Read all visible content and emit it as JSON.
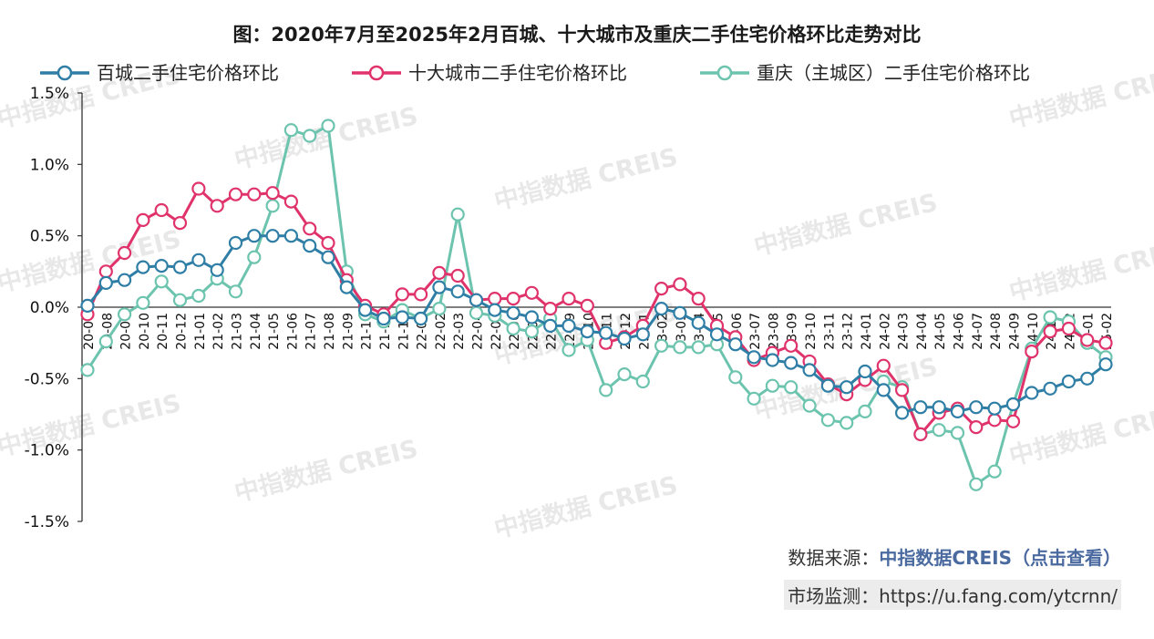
{
  "title": "图：2020年7月至2025年2月百城、十大城市及重庆二手住宅价格环比走势对比",
  "footer": {
    "source_label": "数据来源：",
    "source_link": "中指数据CREIS（点击查看）",
    "monitor_label": "市场监测：",
    "monitor_url": "https://u.fang.com/ytcrnn/"
  },
  "watermark": "中指数据 CREIS",
  "chart_data": {
    "type": "line",
    "title": "图：2020年7月至2025年2月百城、十大城市及重庆二手住宅价格环比走势对比",
    "xlabel": "",
    "ylabel": "",
    "ylim": [
      -1.5,
      1.5
    ],
    "yticks": [
      "1.5%",
      "1.0%",
      "0.5%",
      "0.0%",
      "-0.5%",
      "-1.0%",
      "-1.5%"
    ],
    "ytick_values": [
      1.5,
      1.0,
      0.5,
      0.0,
      -0.5,
      -1.0,
      -1.5
    ],
    "legend_position": "top",
    "grid": false,
    "categories": [
      "20-07",
      "20-08",
      "20-09",
      "20-10",
      "20-11",
      "20-12",
      "21-01",
      "21-02",
      "21-03",
      "21-04",
      "21-05",
      "21-06",
      "21-07",
      "21-08",
      "21-09",
      "21-10",
      "21-11",
      "21-12",
      "22-01",
      "22-02",
      "22-03",
      "22-04",
      "22-05",
      "22-06",
      "22-07",
      "22-08",
      "22-09",
      "22-10",
      "22-11",
      "22-12",
      "23-01",
      "23-02",
      "23-03",
      "23-04",
      "23-05",
      "23-06",
      "23-07",
      "23-08",
      "23-09",
      "23-10",
      "23-11",
      "23-12",
      "24-01",
      "24-02",
      "24-03",
      "24-04",
      "24-05",
      "24-06",
      "24-07",
      "24-08",
      "24-09",
      "24-10",
      "24-11",
      "24-12",
      "25-01",
      "25-02"
    ],
    "series": [
      {
        "name": "百城二手住宅价格环比",
        "color": "#2e7ea6",
        "values": [
          0.01,
          0.17,
          0.19,
          0.28,
          0.29,
          0.28,
          0.33,
          0.26,
          0.45,
          0.5,
          0.5,
          0.5,
          0.43,
          0.35,
          0.14,
          -0.02,
          -0.08,
          -0.07,
          -0.08,
          0.14,
          0.11,
          0.05,
          -0.02,
          -0.04,
          -0.07,
          -0.13,
          -0.13,
          -0.17,
          -0.18,
          -0.22,
          -0.19,
          -0.01,
          -0.04,
          -0.11,
          -0.19,
          -0.26,
          -0.35,
          -0.37,
          -0.39,
          -0.44,
          -0.55,
          -0.56,
          -0.45,
          -0.58,
          -0.74,
          -0.7,
          -0.7,
          -0.73,
          -0.7,
          -0.71,
          -0.68,
          -0.6,
          -0.57,
          -0.52,
          -0.5,
          -0.4
        ]
      },
      {
        "name": "十大城市二手住宅价格环比",
        "color": "#e0336b",
        "values": [
          -0.05,
          0.25,
          0.38,
          0.61,
          0.68,
          0.59,
          0.83,
          0.71,
          0.79,
          0.79,
          0.8,
          0.74,
          0.55,
          0.45,
          0.19,
          0.01,
          -0.05,
          0.09,
          0.09,
          0.24,
          0.22,
          0.05,
          0.06,
          0.06,
          0.1,
          -0.01,
          0.06,
          0.01,
          -0.25,
          -0.21,
          -0.13,
          0.13,
          0.16,
          0.06,
          -0.13,
          -0.21,
          -0.37,
          -0.32,
          -0.27,
          -0.38,
          -0.54,
          -0.61,
          -0.51,
          -0.41,
          -0.58,
          -0.89,
          -0.74,
          -0.71,
          -0.84,
          -0.79,
          -0.8,
          -0.31,
          -0.17,
          -0.15,
          -0.23,
          -0.25
        ]
      },
      {
        "name": "重庆（主城区）二手住宅价格环比",
        "color": "#6cc4ae",
        "values": [
          -0.44,
          -0.24,
          -0.05,
          0.03,
          0.18,
          0.05,
          0.08,
          0.2,
          0.11,
          0.35,
          0.71,
          1.24,
          1.2,
          1.27,
          0.25,
          -0.05,
          -0.1,
          -0.02,
          -0.08,
          -0.01,
          0.65,
          -0.04,
          -0.06,
          -0.15,
          -0.17,
          -0.08,
          -0.3,
          -0.23,
          -0.58,
          -0.47,
          -0.52,
          -0.27,
          -0.28,
          -0.28,
          -0.26,
          -0.49,
          -0.64,
          -0.55,
          -0.56,
          -0.69,
          -0.79,
          -0.81,
          -0.73,
          -0.52,
          -0.56,
          -0.89,
          -0.86,
          -0.88,
          -1.24,
          -1.15,
          -0.68,
          -0.29,
          -0.07,
          -0.1,
          -0.25,
          -0.35
        ]
      }
    ]
  }
}
